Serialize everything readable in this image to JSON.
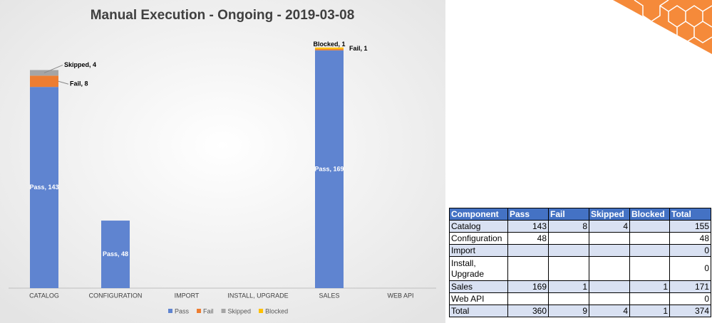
{
  "chart_data": {
    "type": "stacked_bar",
    "title": "Manual Execution - Ongoing - 2019-03-08",
    "categories": [
      "CATALOG",
      "CONFIGURATION",
      "IMPORT",
      "INSTALL, UPGRADE",
      "SALES",
      "WEB API"
    ],
    "ylim": [
      0,
      180
    ],
    "legend": "bottom",
    "series": [
      {
        "name": "Pass",
        "color": "#5f84d0",
        "values": [
          143,
          48,
          null,
          null,
          169,
          null
        ],
        "value_labels": [
          "Pass, 143",
          "Pass, 48",
          null,
          null,
          "Pass, 169",
          null
        ]
      },
      {
        "name": "Fail",
        "color": "#ed7d31",
        "values": [
          8,
          null,
          null,
          null,
          1,
          null
        ],
        "value_labels": [
          "Fail, 8",
          null,
          null,
          null,
          "Fail, 1",
          null
        ]
      },
      {
        "name": "Skipped",
        "color": "#a5a5a5",
        "values": [
          4,
          null,
          null,
          null,
          null,
          null
        ],
        "value_labels": [
          "Skipped, 4",
          null,
          null,
          null,
          null,
          null
        ]
      },
      {
        "name": "Blocked",
        "color": "#ffc000",
        "values": [
          null,
          null,
          null,
          null,
          1,
          null
        ],
        "value_labels": [
          null,
          null,
          null,
          null,
          "Blocked, 1",
          null
        ]
      }
    ]
  },
  "table": {
    "header": [
      "Component",
      "Pass",
      "Fail",
      "Skipped",
      "Blocked",
      "Total"
    ],
    "rows": [
      [
        "Catalog",
        143,
        8,
        4,
        null,
        155
      ],
      [
        "Configuration",
        48,
        null,
        null,
        null,
        48
      ],
      [
        "Import",
        null,
        null,
        null,
        null,
        0
      ],
      [
        "Install, Upgrade",
        null,
        null,
        null,
        null,
        0
      ],
      [
        "Sales",
        169,
        1,
        null,
        1,
        171
      ],
      [
        "Web API",
        null,
        null,
        null,
        null,
        0
      ],
      [
        "Total",
        360,
        9,
        4,
        1,
        374
      ]
    ]
  }
}
